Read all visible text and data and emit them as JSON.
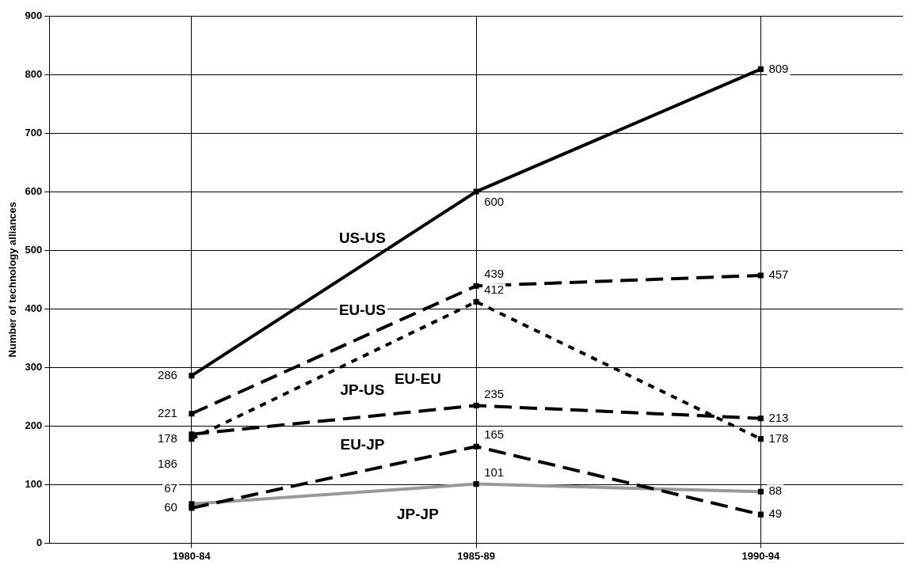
{
  "chart_data": {
    "type": "line",
    "ylabel": "Number of technology alliances",
    "categories": [
      "1980-84",
      "1985-89",
      "1990-94"
    ],
    "series": [
      {
        "name": "US-US",
        "color": "#000000",
        "values": [
          286,
          600,
          809
        ],
        "line_style": "solid"
      },
      {
        "name": "EU-US",
        "color": "#000000",
        "values": [
          221,
          439,
          457
        ],
        "line_style": "dashed"
      },
      {
        "name": "EU-EU",
        "color": "#000000",
        "values": [
          178,
          412,
          178
        ],
        "line_style": "dotted"
      },
      {
        "name": "JP-US",
        "color": "#000000",
        "values": [
          186,
          235,
          213
        ],
        "line_style": "dashed"
      },
      {
        "name": "EU-JP",
        "color": "#000000",
        "values": [
          60,
          165,
          49
        ],
        "line_style": "dashed"
      },
      {
        "name": "JP-JP",
        "color": "#999999",
        "values": [
          67,
          101,
          88
        ],
        "line_style": "solid"
      }
    ],
    "ylim": [
      0,
      900
    ],
    "yticks": [
      0,
      100,
      200,
      300,
      400,
      500,
      600,
      700,
      800,
      900
    ],
    "grid": true,
    "legend": false,
    "marker": "square",
    "data_labels": true
  }
}
